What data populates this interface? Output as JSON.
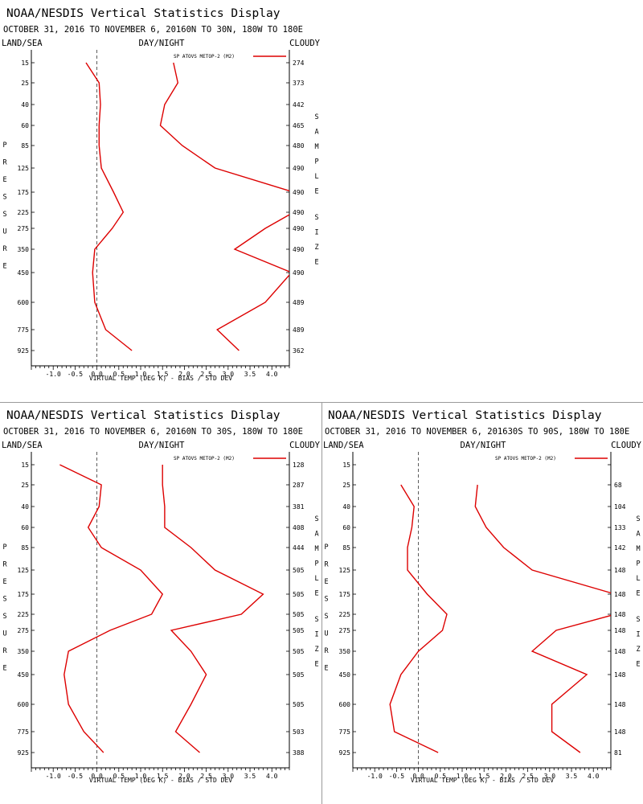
{
  "chart_data": [
    {
      "type": "line",
      "title": "NOAA/NESDIS Vertical Statistics Display",
      "subtitle": "OCTOBER 31, 2016 TO NOVEMBER 6, 2016",
      "region": "0N TO 30N, 180W TO 180E",
      "header_left": "LAND/SEA",
      "header_center": "DAY/NIGHT",
      "header_right": "CLOUDY",
      "xlabel": "VIRTUAL TEMP (DEG K) - BIAS / STD DEV",
      "ylabel": "PRESSURE",
      "y2label": "SAMPLE SIZE",
      "xlim": [
        -1.5,
        4.4
      ],
      "xticks": [
        "-1.0",
        "-0.5",
        "0.0",
        "0.5",
        "1.0",
        "1.5",
        "2.0",
        "2.5",
        "3.0",
        "3.5",
        "4.0"
      ],
      "pressure_levels": [
        "15",
        "25",
        "40",
        "60",
        "85",
        "125",
        "175",
        "225",
        "275",
        "350",
        "450",
        "600",
        "775",
        "925"
      ],
      "sample_size": [
        "274",
        "373",
        "442",
        "465",
        "480",
        "490",
        "490",
        "490",
        "490",
        "490",
        "490",
        "489",
        "489",
        "362"
      ],
      "legend": "SP ATOVS METOP-2 (M2)",
      "legend_position": "top-right",
      "line_color": "#dd0000",
      "series": [
        {
          "name": "BIAS",
          "values": [
            -0.25,
            0.05,
            0.08,
            0.05,
            0.05,
            0.1,
            0.38,
            0.6,
            0.35,
            -0.05,
            -0.1,
            -0.05,
            0.2,
            0.8
          ]
        },
        {
          "name": "STD DEV",
          "values": [
            1.75,
            1.85,
            1.55,
            1.45,
            1.95,
            2.7,
            4.5,
            4.5,
            3.85,
            3.15,
            4.45,
            3.85,
            2.75,
            3.25
          ]
        }
      ]
    },
    {
      "type": "line",
      "title": "NOAA/NESDIS Vertical Statistics Display",
      "subtitle": "OCTOBER 31, 2016 TO NOVEMBER 6, 2016",
      "region": "0N TO 30S, 180W TO 180E",
      "header_left": "LAND/SEA",
      "header_center": "DAY/NIGHT",
      "header_right": "CLOUDY",
      "xlabel": "VIRTUAL TEMP (DEG K) - BIAS / STD DEV",
      "ylabel": "PRESSURE",
      "y2label": "SAMPLE SIZE",
      "xlim": [
        -1.5,
        4.4
      ],
      "xticks": [
        "-1.0",
        "-0.5",
        "0.0",
        "0.5",
        "1.0",
        "1.5",
        "2.0",
        "2.5",
        "3.0",
        "3.5",
        "4.0"
      ],
      "pressure_levels": [
        "15",
        "25",
        "40",
        "60",
        "85",
        "125",
        "175",
        "225",
        "275",
        "350",
        "450",
        "600",
        "775",
        "925"
      ],
      "sample_size": [
        "128",
        "287",
        "381",
        "408",
        "444",
        "505",
        "505",
        "505",
        "505",
        "505",
        "505",
        "505",
        "503",
        "388"
      ],
      "legend": "SP ATOVS METOP-2 (M2)",
      "legend_position": "top-right",
      "line_color": "#dd0000",
      "series": [
        {
          "name": "BIAS",
          "values": [
            -0.85,
            0.1,
            0.05,
            -0.2,
            0.1,
            1.0,
            1.5,
            1.25,
            0.3,
            -0.65,
            -0.75,
            -0.65,
            -0.3,
            0.15
          ]
        },
        {
          "name": "STD DEV",
          "values": [
            1.5,
            1.5,
            1.55,
            1.55,
            2.15,
            2.7,
            3.8,
            3.3,
            1.7,
            2.15,
            2.5,
            2.15,
            1.8,
            2.35
          ]
        }
      ]
    },
    {
      "type": "line",
      "title": "NOAA/NESDIS Vertical Statistics Display",
      "subtitle": "OCTOBER 31, 2016 TO NOVEMBER 6, 2016",
      "region": "30S TO 90S, 180W TO 180E",
      "header_left": "LAND/SEA",
      "header_center": "DAY/NIGHT",
      "header_right": "CLOUDY",
      "xlabel": "VIRTUAL TEMP (DEG K) - BIAS / STD DEV",
      "ylabel": "PRESSURE",
      "y2label": "SAMPLE SIZE",
      "xlim": [
        -1.5,
        4.4
      ],
      "xticks": [
        "-1.0",
        "-0.5",
        "0.0",
        "0.5",
        "1.0",
        "1.5",
        "2.0",
        "2.5",
        "3.0",
        "3.5",
        "4.0"
      ],
      "pressure_levels": [
        "15",
        "25",
        "40",
        "60",
        "85",
        "125",
        "175",
        "225",
        "275",
        "350",
        "450",
        "600",
        "775",
        "925"
      ],
      "sample_size": [
        "",
        "68",
        "104",
        "133",
        "142",
        "148",
        "148",
        "148",
        "148",
        "148",
        "148",
        "148",
        "148",
        "81"
      ],
      "legend": "SP ATOVS METOP-2 (M2)",
      "legend_position": "top-right",
      "line_color": "#dd0000",
      "series": [
        {
          "name": "BIAS",
          "values": [
            null,
            -0.4,
            -0.1,
            -0.15,
            -0.25,
            -0.25,
            0.2,
            0.65,
            0.55,
            0.0,
            -0.4,
            -0.65,
            -0.55,
            0.45
          ]
        },
        {
          "name": "STD DEV",
          "values": [
            null,
            1.35,
            1.3,
            1.55,
            1.95,
            2.6,
            4.5,
            4.5,
            3.15,
            2.6,
            3.85,
            3.05,
            3.05,
            3.7
          ]
        }
      ]
    }
  ]
}
